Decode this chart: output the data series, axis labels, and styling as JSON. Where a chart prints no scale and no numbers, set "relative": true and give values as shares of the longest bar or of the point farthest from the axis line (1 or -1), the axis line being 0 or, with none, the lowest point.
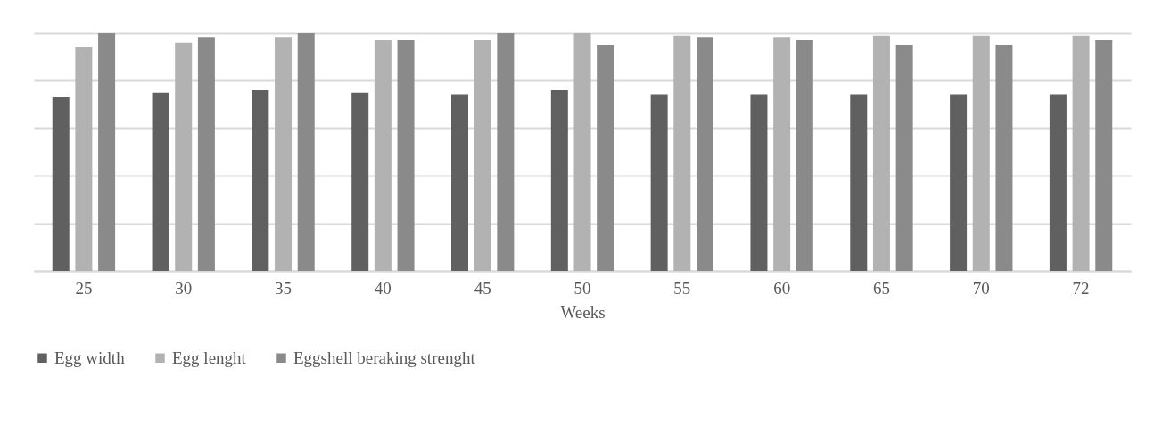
{
  "chart_data": {
    "type": "bar",
    "relative": true,
    "xlabel": "Weeks",
    "categories": [
      "25",
      "30",
      "35",
      "40",
      "45",
      "50",
      "55",
      "60",
      "65",
      "70",
      "72"
    ],
    "series": [
      {
        "name": "Egg width",
        "color": "#606060",
        "values": [
          0.73,
          0.75,
          0.76,
          0.75,
          0.74,
          0.76,
          0.74,
          0.74,
          0.74,
          0.74,
          0.74
        ]
      },
      {
        "name": "Egg lenght",
        "color": "#b2b2b2",
        "values": [
          0.94,
          0.96,
          0.98,
          0.97,
          0.97,
          1,
          0.99,
          0.98,
          0.99,
          0.99,
          0.99
        ]
      },
      {
        "name": "Eggshell beraking strenght",
        "color": "#8a8a8a",
        "values": [
          1,
          0.98,
          1,
          0.97,
          1,
          0.95,
          0.98,
          0.97,
          0.95,
          0.95,
          0.97
        ]
      }
    ],
    "grid": true,
    "legend": "bottom"
  }
}
